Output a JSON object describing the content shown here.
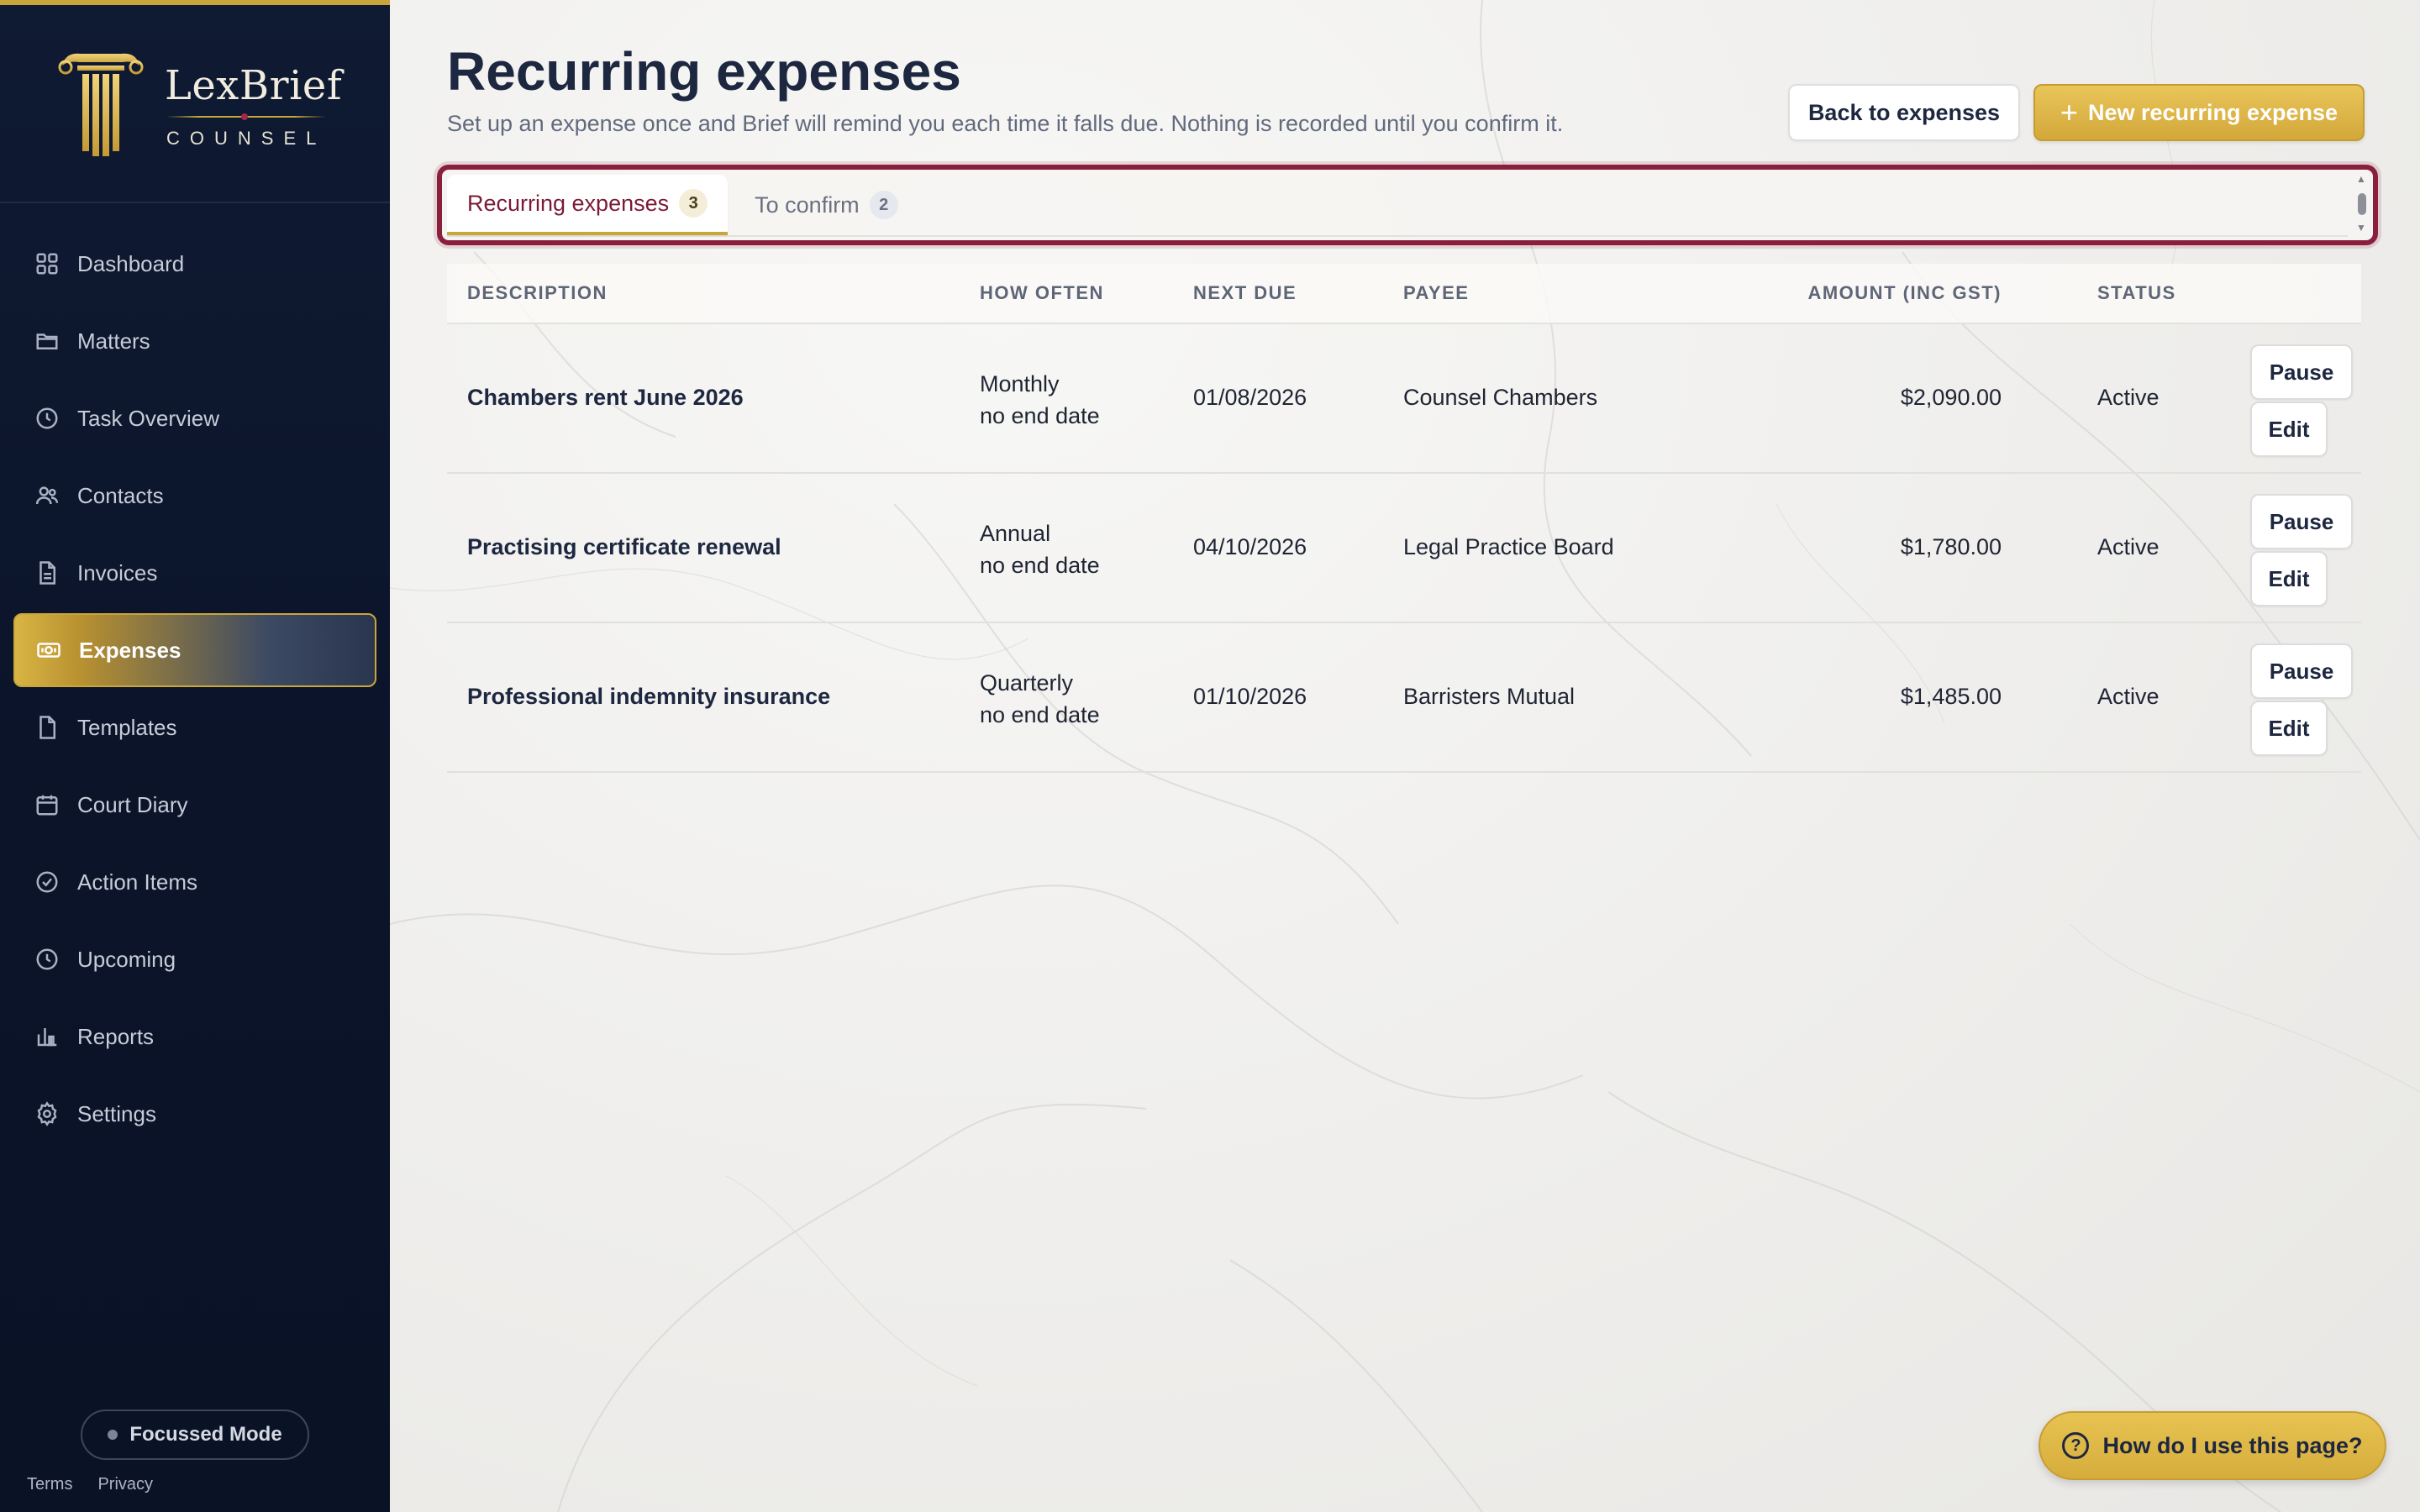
{
  "brand": {
    "name": "LexBrief",
    "sub": "COUNSEL"
  },
  "nav": [
    {
      "label": "Dashboard",
      "icon": "dashboard-icon"
    },
    {
      "label": "Matters",
      "icon": "folder-icon"
    },
    {
      "label": "Task Overview",
      "icon": "clock-icon"
    },
    {
      "label": "Contacts",
      "icon": "users-icon"
    },
    {
      "label": "Invoices",
      "icon": "document-icon"
    },
    {
      "label": "Expenses",
      "icon": "banknote-icon",
      "active": true
    },
    {
      "label": "Templates",
      "icon": "file-icon"
    },
    {
      "label": "Court Diary",
      "icon": "calendar-icon"
    },
    {
      "label": "Action Items",
      "icon": "check-circle-icon"
    },
    {
      "label": "Upcoming",
      "icon": "clock-icon"
    },
    {
      "label": "Reports",
      "icon": "bar-chart-icon"
    },
    {
      "label": "Settings",
      "icon": "gear-icon"
    }
  ],
  "focus_mode": "Focussed Mode",
  "footer": {
    "terms": "Terms",
    "privacy": "Privacy"
  },
  "header": {
    "title": "Recurring expenses",
    "subtitle": "Set up an expense once and Brief will remind you each time it falls due. Nothing is recorded until you confirm it.",
    "back_label": "Back to expenses",
    "new_label": "New recurring expense"
  },
  "tabs": [
    {
      "label": "Recurring expenses",
      "count": "3",
      "active": true
    },
    {
      "label": "To confirm",
      "count": "2",
      "active": false
    }
  ],
  "table": {
    "columns": [
      "DESCRIPTION",
      "HOW OFTEN",
      "NEXT DUE",
      "PAYEE",
      "AMOUNT (INC GST)",
      "STATUS"
    ],
    "rows": [
      {
        "description": "Chambers rent June 2026",
        "frequency": "Monthly",
        "end": "no end date",
        "next_due": "01/08/2026",
        "payee": "Counsel Chambers",
        "amount": "$2,090.00",
        "status": "Active",
        "pause": "Pause",
        "edit": "Edit"
      },
      {
        "description": "Practising certificate renewal",
        "frequency": "Annual",
        "end": "no end date",
        "next_due": "04/10/2026",
        "payee": "Legal Practice Board",
        "amount": "$1,780.00",
        "status": "Active",
        "pause": "Pause",
        "edit": "Edit"
      },
      {
        "description": "Professional indemnity insurance",
        "frequency": "Quarterly",
        "end": "no end date",
        "next_due": "01/10/2026",
        "payee": "Barristers Mutual",
        "amount": "$1,485.00",
        "status": "Active",
        "pause": "Pause",
        "edit": "Edit"
      }
    ]
  },
  "help": {
    "label": "How do I use this page?"
  },
  "colors": {
    "sidebar": "#0f1a33",
    "accent_gold": "#d3a83a",
    "focus_ring": "#8a1f3d",
    "active_tab_text": "#7a1a36"
  }
}
